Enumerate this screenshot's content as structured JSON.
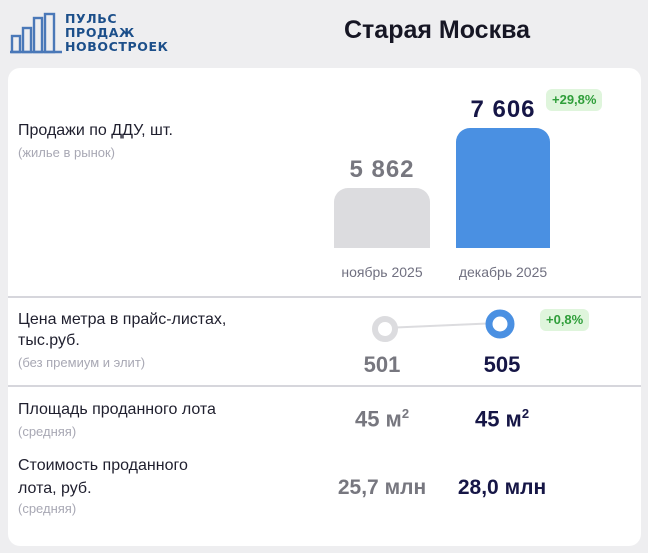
{
  "logo": {
    "line1": "ПУЛЬС",
    "line2": "ПРОДАЖ",
    "line3": "НОВОСТРОЕК"
  },
  "title": "Старая Москва",
  "colors": {
    "accent": "#4a90e2",
    "gray_bar": "#dcdcdf",
    "badge_bg": "#dff5dc",
    "badge_text": "#2f9e3a",
    "dark_text": "#161646"
  },
  "sales": {
    "label": "Продажи по ДДУ, шт.",
    "sub": "(жилье в рынок)",
    "nov_value": "5 862",
    "dec_value": "7 606",
    "nov_label": "ноябрь 2025",
    "dec_label": "декабрь 2025",
    "change": "+29,8%"
  },
  "chart_data": {
    "type": "bar",
    "categories": [
      "ноябрь 2025",
      "декабрь 2025"
    ],
    "values": [
      5862,
      7606
    ]
  },
  "price": {
    "label_line1": "Цена метра в прайс-листах,",
    "label_line2": "тыс.руб.",
    "sub": "(без премиум и элит)",
    "nov_value": "501",
    "dec_value": "505",
    "change": "+0,8%"
  },
  "area": {
    "label": "Площадь проданного лота",
    "sub": "(средняя)",
    "nov_value": "45 м",
    "dec_value": "45 м",
    "unit_sup": "2"
  },
  "cost": {
    "label_line1": "Стоимость проданного",
    "label_line2": "лота, руб.",
    "sub": "(средняя)",
    "nov_value": "25,7 млн",
    "dec_value": "28,0 млн"
  }
}
